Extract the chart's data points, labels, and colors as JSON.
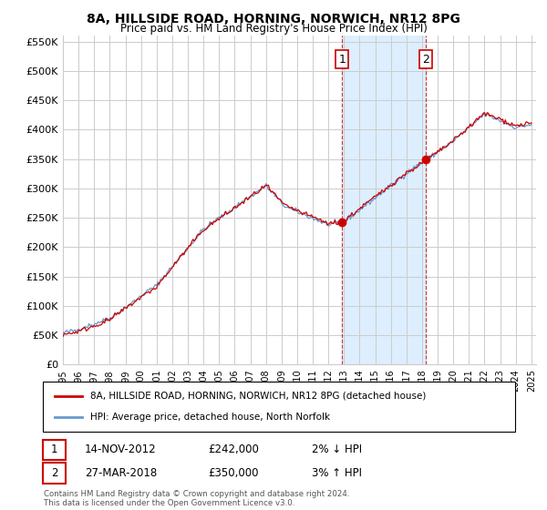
{
  "title": "8A, HILLSIDE ROAD, HORNING, NORWICH, NR12 8PG",
  "subtitle": "Price paid vs. HM Land Registry's House Price Index (HPI)",
  "ylim": [
    0,
    560000
  ],
  "yticks": [
    0,
    50000,
    100000,
    150000,
    200000,
    250000,
    300000,
    350000,
    400000,
    450000,
    500000,
    550000
  ],
  "ytick_labels": [
    "£0",
    "£50K",
    "£100K",
    "£150K",
    "£200K",
    "£250K",
    "£300K",
    "£350K",
    "£400K",
    "£450K",
    "£500K",
    "£550K"
  ],
  "x_start_year": 1995,
  "x_end_year": 2025,
  "legend_label_red": "8A, HILLSIDE ROAD, HORNING, NORWICH, NR12 8PG (detached house)",
  "legend_label_blue": "HPI: Average price, detached house, North Norfolk",
  "annotation1_label": "1",
  "annotation1_date": "14-NOV-2012",
  "annotation1_price": "£242,000",
  "annotation1_hpi": "2% ↓ HPI",
  "annotation2_label": "2",
  "annotation2_date": "27-MAR-2018",
  "annotation2_price": "£350,000",
  "annotation2_hpi": "3% ↑ HPI",
  "footer": "Contains HM Land Registry data © Crown copyright and database right 2024.\nThis data is licensed under the Open Government Licence v3.0.",
  "red_color": "#cc0000",
  "blue_color": "#6699cc",
  "highlight_color": "#ddeeff",
  "grid_color": "#cccccc",
  "background_color": "#ffffff",
  "sale1_year": 2012.875,
  "sale1_price": 242000,
  "sale2_year": 2018.25,
  "sale2_price": 350000
}
